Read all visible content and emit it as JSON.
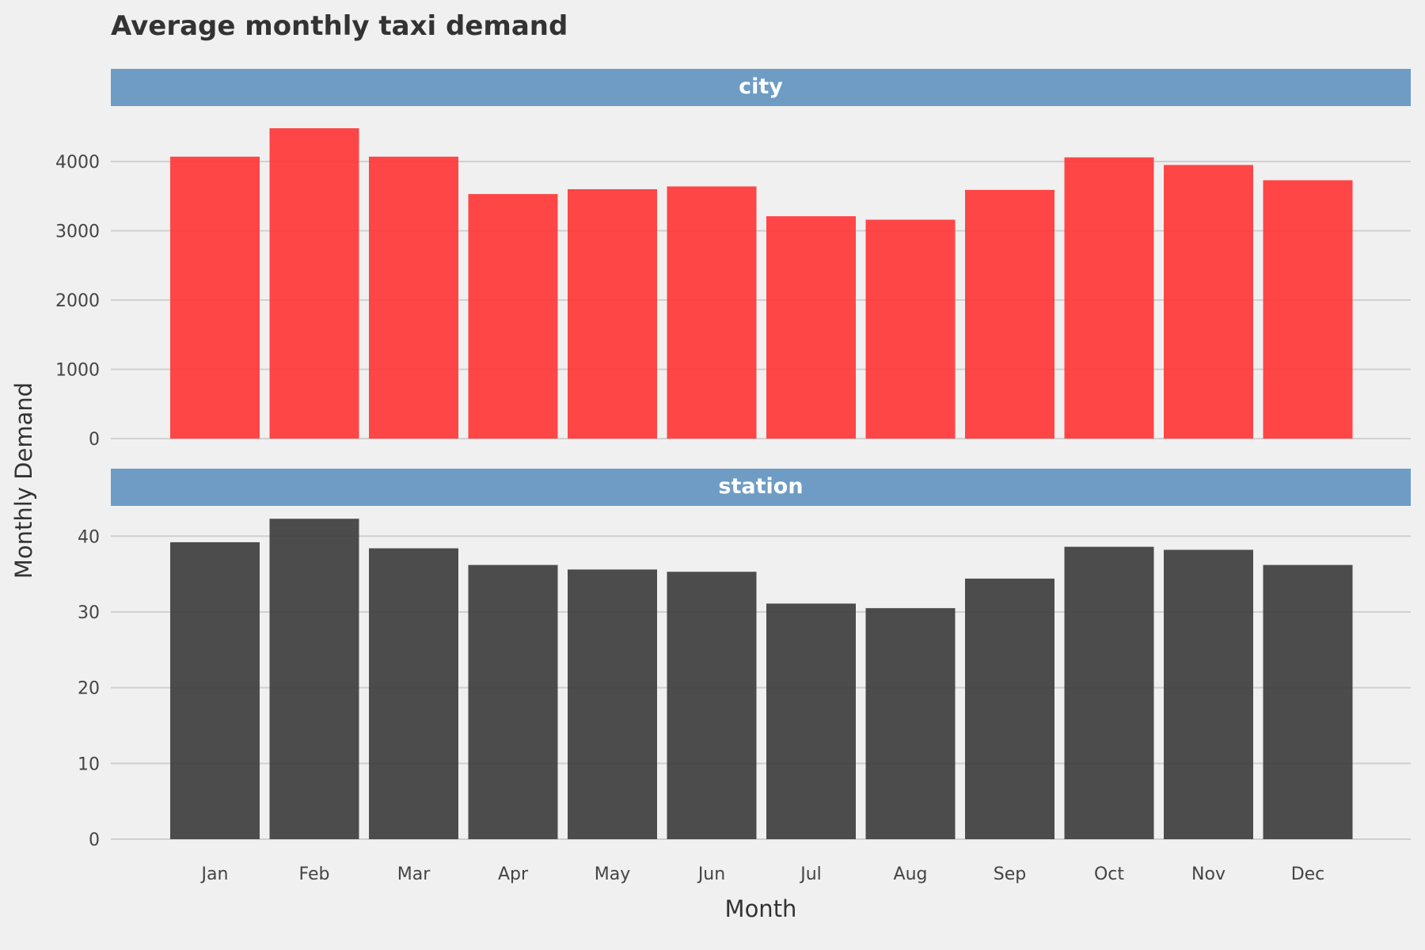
{
  "chart_data": {
    "type": "bar",
    "title": "Average monthly taxi demand",
    "xlabel": "Month",
    "ylabel": "Monthly Demand",
    "categories": [
      "Jan",
      "Feb",
      "Mar",
      "Apr",
      "May",
      "Jun",
      "Jul",
      "Aug",
      "Sep",
      "Oct",
      "Nov",
      "Dec"
    ],
    "grid": "horizontal",
    "facets": [
      {
        "label": "city",
        "color": "#ff3333",
        "ylim": [
          0,
          4800
        ],
        "yticks": [
          0,
          1000,
          2000,
          3000,
          4000
        ],
        "values": [
          4070,
          4480,
          4070,
          3530,
          3600,
          3640,
          3210,
          3160,
          3590,
          4060,
          3950,
          3730
        ]
      },
      {
        "label": "station",
        "color": "#3a3a3a",
        "ylim": [
          0,
          44
        ],
        "yticks": [
          0,
          10,
          20,
          30,
          40
        ],
        "values": [
          39.2,
          42.3,
          38.4,
          36.2,
          35.6,
          35.3,
          31.1,
          30.5,
          34.4,
          38.6,
          38.2,
          36.2
        ]
      }
    ],
    "colors": {
      "strip": "#6e9cc4",
      "background": "#f0f0f0",
      "grid": "#d0d0d0"
    }
  }
}
